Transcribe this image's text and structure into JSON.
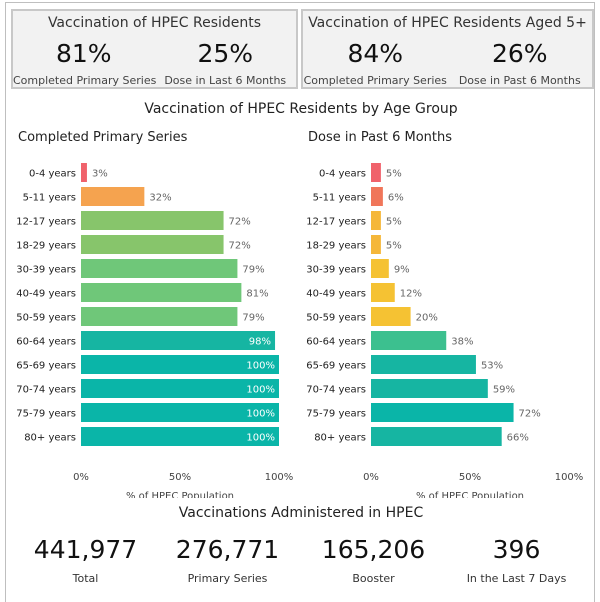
{
  "kpis": [
    {
      "title": "Vaccination of HPEC Residents",
      "cards": [
        {
          "value": "81%",
          "label": "Completed Primary Series"
        },
        {
          "value": "25%",
          "label": "Dose in Last 6 Months"
        }
      ]
    },
    {
      "title": "Vaccination of HPEC Residents Aged 5+",
      "cards": [
        {
          "value": "84%",
          "label": "Completed Primary Series"
        },
        {
          "value": "26%",
          "label": "Dose in Past 6 Months"
        }
      ]
    }
  ],
  "charts_title": "Vaccination of HPEC Residents by Age Group",
  "chart_data": [
    {
      "type": "bar",
      "orientation": "horizontal",
      "title": "Completed Primary Series",
      "xlabel": "% of HPEC Population",
      "xlim": [
        0,
        100
      ],
      "x_ticks": [
        "0%",
        "50%",
        "100%"
      ],
      "grid": false,
      "categories": [
        "0-4 years",
        "5-11 years",
        "12-17 years",
        "18-29 years",
        "30-39 years",
        "40-49 years",
        "50-59 years",
        "60-64 years",
        "65-69 years",
        "70-74 years",
        "75-79 years",
        "80+ years"
      ],
      "values": [
        3,
        32,
        72,
        72,
        79,
        81,
        79,
        98,
        100,
        100,
        100,
        100
      ],
      "value_labels": [
        "3%",
        "32%",
        "72%",
        "72%",
        "79%",
        "81%",
        "79%",
        "98%",
        "100%",
        "100%",
        "100%",
        "100%"
      ],
      "colors": [
        "#f0626b",
        "#f5a34f",
        "#87c56b",
        "#87c56b",
        "#6fc779",
        "#6fc779",
        "#6fc779",
        "#16b5a2",
        "#0ab5a8",
        "#0ab5a8",
        "#0ab5a8",
        "#0ab5a8"
      ]
    },
    {
      "type": "bar",
      "orientation": "horizontal",
      "title": "Dose in Past 6 Months",
      "xlabel": "% of HPEC Population",
      "xlim": [
        0,
        100
      ],
      "x_ticks": [
        "0%",
        "50%",
        "100%"
      ],
      "grid": false,
      "categories": [
        "0-4 years",
        "5-11 years",
        "12-17 years",
        "18-29 years",
        "30-39 years",
        "40-49 years",
        "50-59 years",
        "60-64 years",
        "65-69 years",
        "70-74 years",
        "75-79 years",
        "80+ years"
      ],
      "values": [
        5,
        6,
        5,
        5,
        9,
        12,
        20,
        38,
        53,
        59,
        72,
        66
      ],
      "value_labels": [
        "5%",
        "6%",
        "5%",
        "5%",
        "9%",
        "12%",
        "20%",
        "38%",
        "53%",
        "59%",
        "72%",
        "66%"
      ],
      "colors": [
        "#f0626b",
        "#f0765a",
        "#f5b73a",
        "#f5b73a",
        "#f5c233",
        "#f5c233",
        "#f5c233",
        "#3cc08f",
        "#16b5a2",
        "#16b5a2",
        "#0ab5a8",
        "#16b5a2"
      ]
    }
  ],
  "totals": {
    "title": "Vaccinations Administered in HPEC",
    "items": [
      {
        "value": "441,977",
        "label": "Total"
      },
      {
        "value": "276,771",
        "label": "Primary Series"
      },
      {
        "value": "165,206",
        "label": "Booster"
      },
      {
        "value": "396",
        "label": "In the Last 7 Days"
      }
    ]
  }
}
